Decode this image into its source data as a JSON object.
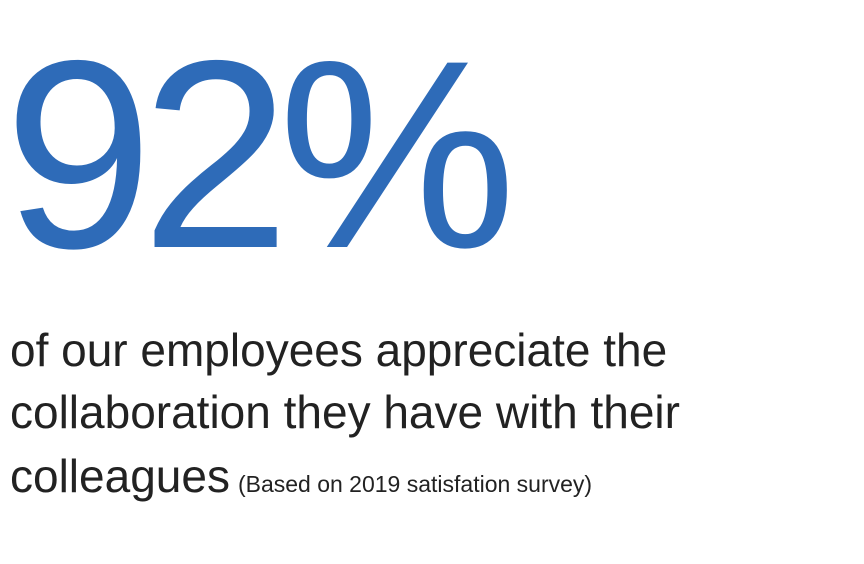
{
  "stat": {
    "value": "92%",
    "description": [
      "of our employees appreciate the",
      "collaboration they have with their",
      "colleagues"
    ],
    "note": "(Based on 2019 satisfation survey)"
  }
}
